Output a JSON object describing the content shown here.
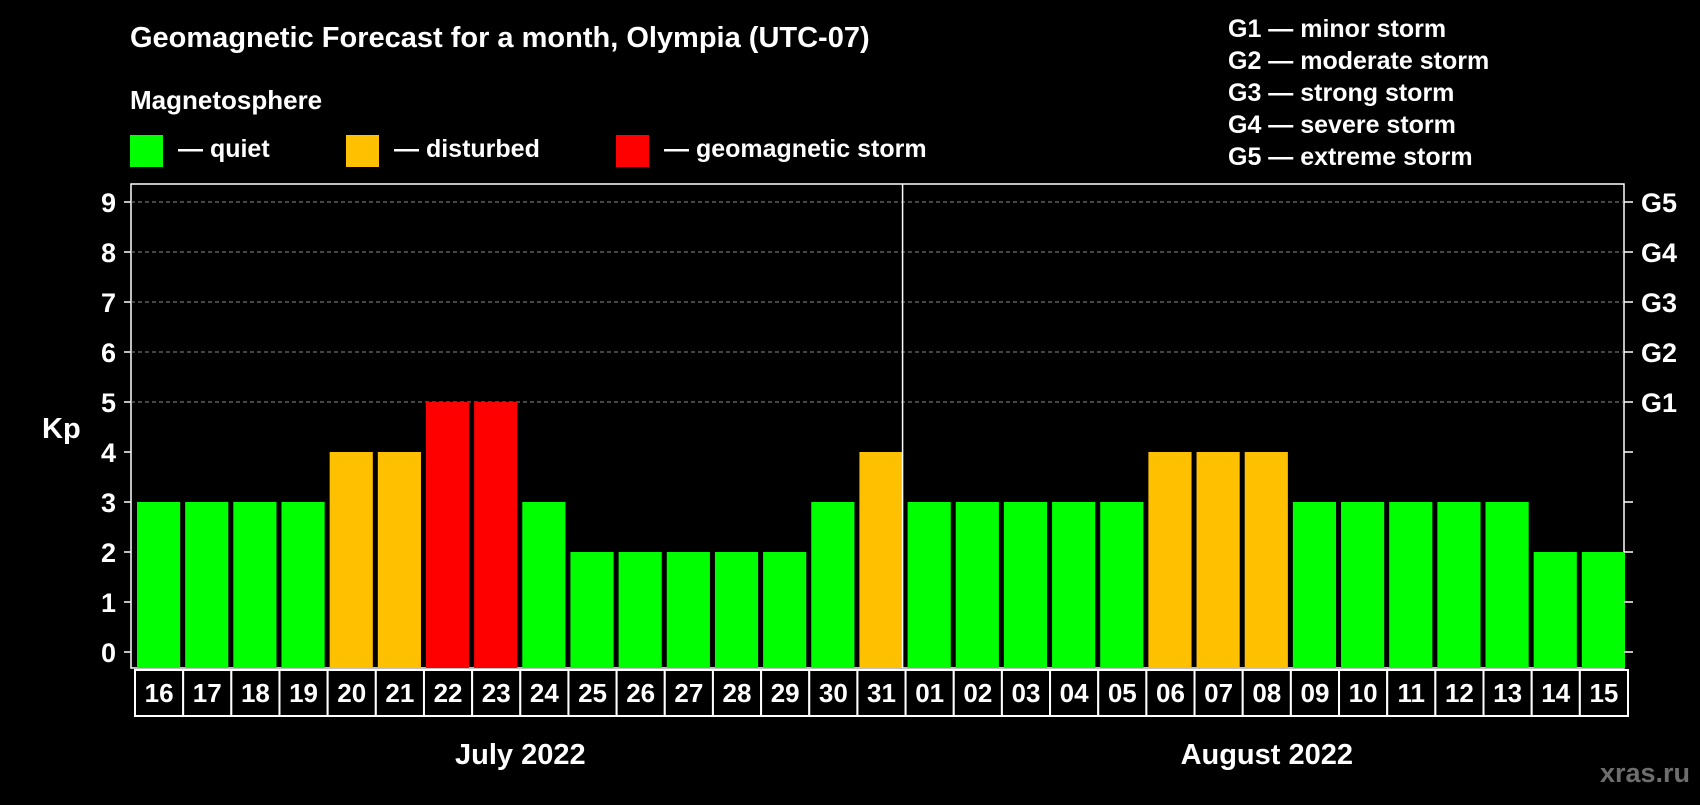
{
  "title": "Geomagnetic Forecast for a month, Olympia (UTC-07)",
  "magnetosphere_label": "Magnetosphere",
  "legend": [
    {
      "label": "— quiet",
      "color": "#00ff00"
    },
    {
      "label": "— disturbed",
      "color": "#ffc000"
    },
    {
      "label": "— geomagnetic storm",
      "color": "#ff0000"
    }
  ],
  "storm_legend": [
    "G1 — minor storm",
    "G2 — moderate storm",
    "G3 — strong storm",
    "G4 — severe storm",
    "G5 — extreme storm"
  ],
  "watermark": "xras.ru",
  "colors": {
    "quiet": "#00ff00",
    "disturbed": "#ffc000",
    "storm": "#ff0000"
  },
  "chart_data": {
    "type": "bar",
    "title": "Geomagnetic Forecast for a month, Olympia (UTC-07)",
    "ylabel": "Kp",
    "ylim": [
      0,
      9
    ],
    "yticks": [
      0,
      1,
      2,
      3,
      4,
      5,
      6,
      7,
      8,
      9
    ],
    "right_axis": [
      {
        "kp": 5,
        "label": "G1"
      },
      {
        "kp": 6,
        "label": "G2"
      },
      {
        "kp": 7,
        "label": "G3"
      },
      {
        "kp": 8,
        "label": "G4"
      },
      {
        "kp": 9,
        "label": "G5"
      }
    ],
    "categories": [
      "16",
      "17",
      "18",
      "19",
      "20",
      "21",
      "22",
      "23",
      "24",
      "25",
      "26",
      "27",
      "28",
      "29",
      "30",
      "31",
      "01",
      "02",
      "03",
      "04",
      "05",
      "06",
      "07",
      "08",
      "09",
      "10",
      "11",
      "12",
      "13",
      "14",
      "15"
    ],
    "values": [
      3,
      3,
      3,
      3,
      4,
      4,
      5,
      5,
      3,
      2,
      2,
      2,
      2,
      2,
      3,
      4,
      3,
      3,
      3,
      3,
      3,
      4,
      4,
      4,
      3,
      3,
      3,
      3,
      3,
      2,
      2
    ],
    "months": [
      {
        "label": "July 2022",
        "days": 16
      },
      {
        "label": "August 2022",
        "days": 15
      }
    ],
    "gridlines": [
      5,
      6,
      7,
      8,
      9
    ]
  }
}
